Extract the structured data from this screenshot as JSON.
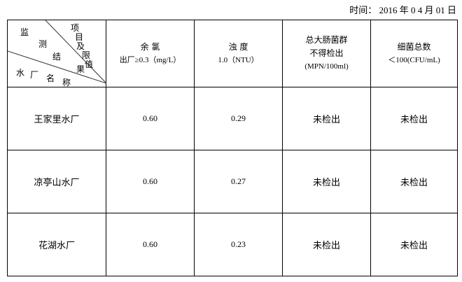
{
  "date": "时间： 2016 年 0 4 月 01 日",
  "corner": {
    "top": [
      "监",
      "测",
      "结",
      "果"
    ],
    "right": [
      "项",
      "目",
      "及",
      "限",
      "值"
    ],
    "bottom": [
      "水",
      "厂",
      "名",
      "称"
    ]
  },
  "columns": [
    {
      "l1": "余 氯",
      "l2": "出厂≥0.3（mg/L）"
    },
    {
      "l1": "浊 度",
      "l2": "1.0（NTU）"
    },
    {
      "l1": "总大肠菌群",
      "l2": "不得检出",
      "l3": "(MPN/100ml)"
    },
    {
      "l1": "细菌总数",
      "l2": "＜100(CFU/mL)"
    }
  ],
  "rows": [
    {
      "name": "王家里水厂",
      "v": [
        "0.60",
        "0.29",
        "未检出",
        "未检出"
      ]
    },
    {
      "name": "凉亭山水厂",
      "v": [
        "0.60",
        "0.27",
        "未检出",
        "未检出"
      ]
    },
    {
      "name": "花湖水厂",
      "v": [
        "0.60",
        "0.23",
        "未检出",
        "未检出"
      ]
    }
  ]
}
